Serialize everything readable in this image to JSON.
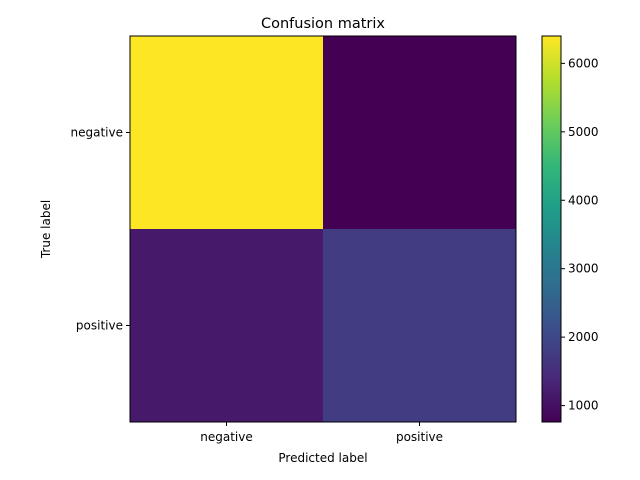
{
  "chart_data": {
    "type": "heatmap",
    "title": "Confusion matrix",
    "xlabel": "Predicted label",
    "ylabel": "True label",
    "x_categories": [
      "negative",
      "positive"
    ],
    "y_categories": [
      "negative",
      "positive"
    ],
    "values": [
      [
        6400,
        760
      ],
      [
        1150,
        1780
      ]
    ],
    "colormap": "viridis",
    "colorbar": {
      "range": [
        760,
        6400
      ],
      "ticks": [
        1000,
        2000,
        3000,
        4000,
        5000,
        6000
      ]
    },
    "grid": false
  }
}
